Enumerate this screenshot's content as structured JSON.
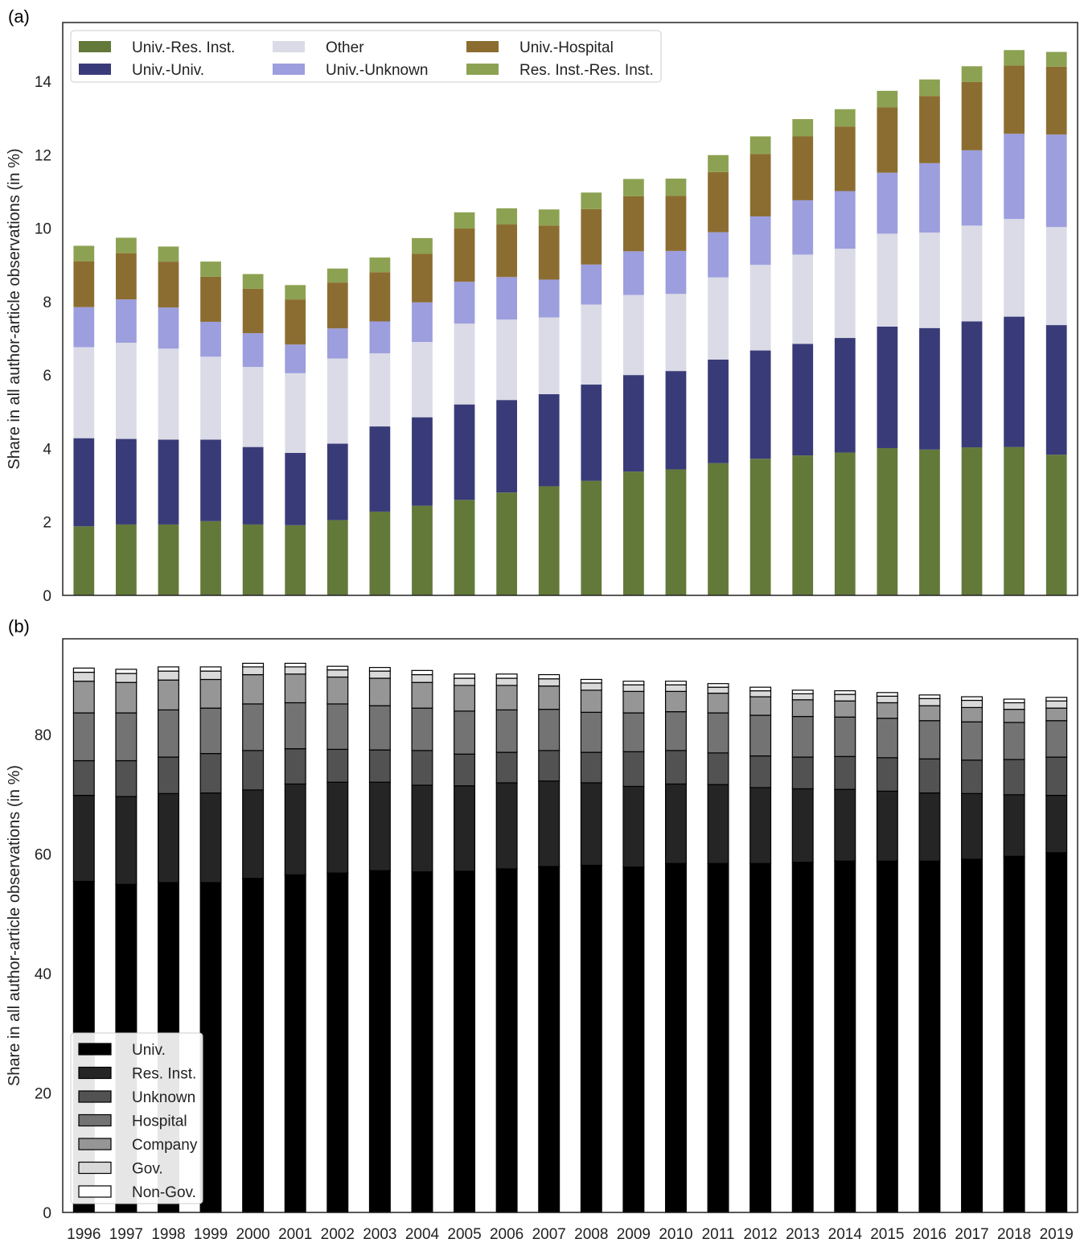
{
  "chart_data": [
    {
      "panel": "(a)",
      "type": "bar",
      "stacked": true,
      "ylabel": "Share in all author-article observations (in %)",
      "xlabel": "",
      "ylim": [
        0,
        15.6
      ],
      "yticks": [
        0,
        2,
        4,
        6,
        8,
        10,
        12,
        14
      ],
      "grid": false,
      "legend": "top-left, 3 columns",
      "categories": [
        "1996",
        "1997",
        "1998",
        "1999",
        "2000",
        "2001",
        "2002",
        "2003",
        "2004",
        "2005",
        "2006",
        "2007",
        "2008",
        "2009",
        "2010",
        "2011",
        "2012",
        "2013",
        "2014",
        "2015",
        "2016",
        "2017",
        "2018",
        "2019"
      ],
      "series": [
        {
          "name": "Univ.-Res. Inst.",
          "color": "#637939",
          "values": [
            1.88,
            1.93,
            1.93,
            2.02,
            1.93,
            1.91,
            2.05,
            2.28,
            2.44,
            2.6,
            2.8,
            2.97,
            3.12,
            3.37,
            3.43,
            3.6,
            3.72,
            3.81,
            3.89,
            4.01,
            3.97,
            4.03,
            4.04,
            3.83
          ]
        },
        {
          "name": "Univ.-Univ.",
          "color": "#393b79",
          "values": [
            2.4,
            2.33,
            2.31,
            2.22,
            2.11,
            1.97,
            2.08,
            2.32,
            2.41,
            2.6,
            2.52,
            2.51,
            2.62,
            2.63,
            2.68,
            2.82,
            2.95,
            3.04,
            3.12,
            3.31,
            3.31,
            3.43,
            3.55,
            3.53
          ]
        },
        {
          "name": "Other",
          "color": "#dadbe6",
          "values": [
            2.48,
            2.62,
            2.48,
            2.26,
            2.18,
            2.17,
            2.32,
            1.99,
            2.05,
            2.2,
            2.19,
            2.09,
            2.18,
            2.18,
            2.1,
            2.24,
            2.33,
            2.43,
            2.43,
            2.53,
            2.6,
            2.61,
            2.66,
            2.67
          ]
        },
        {
          "name": "Univ.-Unknown",
          "color": "#9c9ede",
          "values": [
            1.09,
            1.18,
            1.12,
            0.95,
            0.92,
            0.78,
            0.82,
            0.87,
            1.08,
            1.14,
            1.16,
            1.03,
            1.09,
            1.19,
            1.17,
            1.23,
            1.32,
            1.48,
            1.57,
            1.66,
            1.89,
            2.05,
            2.32,
            2.52
          ]
        },
        {
          "name": "Univ.-Hospital",
          "color": "#8c6d31",
          "values": [
            1.25,
            1.26,
            1.25,
            1.23,
            1.21,
            1.23,
            1.25,
            1.34,
            1.32,
            1.45,
            1.43,
            1.47,
            1.51,
            1.5,
            1.5,
            1.64,
            1.7,
            1.74,
            1.76,
            1.78,
            1.83,
            1.86,
            1.86,
            1.85
          ]
        },
        {
          "name": "Res. Inst.-Res. Inst.",
          "color": "#8ca252",
          "values": [
            0.42,
            0.42,
            0.41,
            0.41,
            0.4,
            0.39,
            0.38,
            0.4,
            0.43,
            0.44,
            0.44,
            0.44,
            0.45,
            0.47,
            0.47,
            0.46,
            0.48,
            0.47,
            0.47,
            0.45,
            0.45,
            0.43,
            0.42,
            0.4
          ]
        }
      ]
    },
    {
      "panel": "(b)",
      "type": "bar",
      "stacked": true,
      "ylabel": "Share in all author-article observations (in %)",
      "xlabel": "",
      "ylim": [
        0,
        96
      ],
      "yticks": [
        0,
        20,
        40,
        60,
        80
      ],
      "grid": false,
      "legend": "bottom-left",
      "categories": [
        "1996",
        "1997",
        "1998",
        "1999",
        "2000",
        "2001",
        "2002",
        "2003",
        "2004",
        "2005",
        "2006",
        "2007",
        "2008",
        "2009",
        "2010",
        "2011",
        "2012",
        "2013",
        "2014",
        "2015",
        "2016",
        "2017",
        "2018",
        "2019"
      ],
      "series": [
        {
          "name": "Univ.",
          "color": "#000000",
          "values": [
            55.4,
            54.9,
            55.2,
            55.2,
            55.9,
            56.5,
            56.8,
            57.2,
            57.0,
            57.1,
            57.5,
            57.9,
            58.1,
            57.8,
            58.4,
            58.4,
            58.4,
            58.6,
            58.8,
            58.8,
            58.8,
            59.1,
            59.6,
            60.2
          ]
        },
        {
          "name": "Res. Inst.",
          "color": "#252525",
          "values": [
            14.4,
            14.7,
            14.9,
            15.0,
            14.8,
            15.2,
            15.2,
            14.8,
            14.5,
            14.3,
            14.4,
            14.3,
            13.8,
            13.5,
            13.3,
            13.2,
            12.7,
            12.3,
            12.0,
            11.7,
            11.4,
            11.0,
            10.3,
            9.6
          ]
        },
        {
          "name": "Unknown",
          "color": "#525252",
          "values": [
            5.8,
            6.0,
            6.1,
            6.6,
            6.6,
            5.9,
            5.5,
            5.4,
            5.8,
            5.3,
            5.1,
            5.1,
            5.1,
            5.8,
            5.6,
            5.3,
            5.3,
            5.3,
            5.5,
            5.6,
            5.7,
            5.6,
            5.9,
            6.4
          ]
        },
        {
          "name": "Hospital",
          "color": "#737373",
          "values": [
            8.0,
            8.0,
            7.9,
            7.6,
            7.8,
            7.7,
            7.6,
            7.4,
            7.1,
            7.2,
            7.1,
            6.9,
            6.7,
            6.5,
            6.5,
            6.7,
            6.8,
            6.8,
            6.6,
            6.6,
            6.4,
            6.4,
            6.2,
            6.1
          ]
        },
        {
          "name": "Company",
          "color": "#969696",
          "values": [
            5.3,
            5.1,
            5.0,
            4.8,
            4.9,
            4.8,
            4.5,
            4.6,
            4.3,
            4.3,
            4.1,
            3.9,
            3.7,
            3.6,
            3.4,
            3.3,
            3.1,
            2.8,
            2.7,
            2.6,
            2.5,
            2.4,
            2.2,
            2.1
          ]
        },
        {
          "name": "Gov.",
          "color": "#d9d9d9",
          "values": [
            1.5,
            1.5,
            1.5,
            1.4,
            1.3,
            1.2,
            1.2,
            1.2,
            1.3,
            1.2,
            1.2,
            1.2,
            1.2,
            1.1,
            1.1,
            1.0,
            1.0,
            1.0,
            1.1,
            1.1,
            1.2,
            1.2,
            1.1,
            1.2
          ]
        },
        {
          "name": "Non-Gov.",
          "color": "#ffffff",
          "values": [
            0.7,
            0.7,
            0.7,
            0.7,
            0.6,
            0.6,
            0.6,
            0.6,
            0.7,
            0.7,
            0.7,
            0.7,
            0.6,
            0.6,
            0.6,
            0.6,
            0.6,
            0.6,
            0.6,
            0.6,
            0.6,
            0.6,
            0.6,
            0.6
          ]
        }
      ]
    }
  ]
}
